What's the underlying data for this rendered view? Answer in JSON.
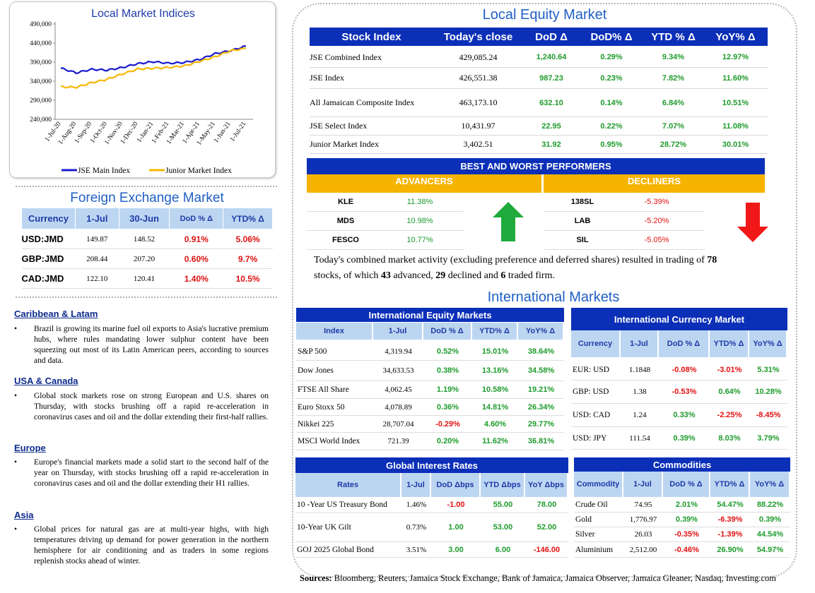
{
  "chart": {
    "title": "Local Market Indices",
    "y_ticks": [
      "490,000",
      "440,000",
      "390,000",
      "340,000",
      "290,000",
      "240,000"
    ],
    "x_ticks": [
      "1-Jul-20",
      "1-Aug-20",
      "1-Sep-20",
      "1-Oct-20",
      "1-Nov-20",
      "1-Dec-20",
      "1-Jan-21",
      "1-Feb-21",
      "1-Mar-21",
      "1-Apr-21",
      "1-May-21",
      "1-Jun-21",
      "1-Jul-21"
    ],
    "legend": [
      "JSE Main Index",
      "Junior Market Index"
    ],
    "colors": {
      "main": "#1a1acc",
      "junior": "#f5b800"
    }
  },
  "chart_data": {
    "type": "line",
    "title": "Local Market Indices",
    "ylim": [
      240000,
      490000
    ],
    "x": [
      "1-Jul-20",
      "1-Aug-20",
      "1-Sep-20",
      "1-Oct-20",
      "1-Nov-20",
      "1-Dec-20",
      "1-Jan-21",
      "1-Feb-21",
      "1-Mar-21",
      "1-Apr-21",
      "1-May-21",
      "1-Jun-21",
      "1-Jul-21"
    ],
    "series": [
      {
        "name": "JSE Main Index",
        "values": [
          374000,
          362000,
          371000,
          369000,
          376000,
          386000,
          391000,
          387000,
          389000,
          397000,
          412000,
          420000,
          432000
        ]
      },
      {
        "name": "Junior Market Index",
        "values": [
          325000,
          324000,
          336000,
          345000,
          359000,
          372000,
          374000,
          376000,
          380000,
          392000,
          404000,
          420000,
          426000
        ]
      }
    ]
  },
  "fx": {
    "title": "Foreign Exchange Market",
    "headers": [
      "Currency",
      "1-Jul",
      "30-Jun",
      "DoD % Δ",
      "YTD% Δ"
    ],
    "rows": [
      {
        "cur": "USD:JMD",
        "a": "149.87",
        "b": "148.52",
        "dod": "0.91%",
        "ytd": "5.06%"
      },
      {
        "cur": "GBP:JMD",
        "a": "208.44",
        "b": "207.20",
        "dod": "0.60%",
        "ytd": "9.7%"
      },
      {
        "cur": "CAD:JMD",
        "a": "122.10",
        "b": "120.41",
        "dod": "1.40%",
        "ytd": "10.5%"
      }
    ]
  },
  "news": [
    {
      "head": "Caribbean & Latam",
      "text": "Brazil is growing its marine fuel oil exports to Asia's lucrative premium hubs, where rules mandating lower sulphur content have been squeezing out most of its Latin American peers, according to sources and data."
    },
    {
      "head": "USA & Canada",
      "text": "Global stock markets rose on strong European and U.S. shares on Thursday, with stocks brushing off a rapid re-acceleration in coronavirus cases and oil and the dollar extending their first-half rallies."
    },
    {
      "head": "Europe",
      "text": "Europe's financial markets made a solid start to the second half of the year on Thursday, with stocks brushing off a rapid re-acceleration in coronavirus cases and oil and the dollar extending their H1 rallies."
    },
    {
      "head": "Asia",
      "text": "Global prices for natural gas are at multi-year highs, with high temperatures driving up demand for power generation in the northern hemisphere for air conditioning and as traders in some regions replenish stocks ahead of winter."
    }
  ],
  "local_equity": {
    "title": "Local Equity Market",
    "headers": [
      "Stock Index",
      "Today's close",
      "DoD  Δ",
      "DoD% Δ",
      "YTD % Δ",
      "YoY% Δ"
    ],
    "rows": [
      {
        "name": "JSE Combined Index",
        "close": "429,085.24",
        "dod": "1,240.64",
        "dodp": "0.29%",
        "ytd": "9.34%",
        "yoy": "12.97%"
      },
      {
        "name": "JSE Index",
        "close": "426,551.38",
        "dod": "987.23",
        "dodp": "0.23%",
        "ytd": "7.82%",
        "yoy": "11.60%"
      },
      {
        "name": "All Jamaican Composite Index",
        "close": "463,173.10",
        "dod": "632.10",
        "dodp": "0.14%",
        "ytd": "6.84%",
        "yoy": "10.51%"
      },
      {
        "name": "JSE Select Index",
        "close": "10,431.97",
        "dod": "22.95",
        "dodp": "0.22%",
        "ytd": "7.07%",
        "yoy": "11.08%"
      },
      {
        "name": "Junior Market Index",
        "close": "3,402.51",
        "dod": "31.92",
        "dodp": "0.95%",
        "ytd": "28.72%",
        "yoy": "30.01%"
      }
    ]
  },
  "performers": {
    "title": "BEST AND WORST PERFORMERS",
    "advancers_label": "ADVANCERS",
    "decliners_label": "DECLINERS",
    "advancers": [
      {
        "sym": "KLE",
        "pct": "11.38%"
      },
      {
        "sym": "MDS",
        "pct": "10.98%"
      },
      {
        "sym": "FESCO",
        "pct": "10.77%"
      }
    ],
    "decliners": [
      {
        "sym": "138SL",
        "pct": "-5.39%"
      },
      {
        "sym": "LAB",
        "pct": "-5.20%"
      },
      {
        "sym": "SIL",
        "pct": "-5.05%"
      }
    ]
  },
  "summary": {
    "p1": "Today's combined market activity (excluding preference and deferred shares) resulted in trading of ",
    "total": "78",
    "p2": "stocks, of which ",
    "adv": "43",
    "p3": " advanced, ",
    "dec": "29",
    "p4": " declined and ",
    "firm": "6",
    "p5": " traded firm."
  },
  "intl": {
    "title": "International Markets",
    "equity": {
      "title": "International Equity Markets",
      "headers": [
        "Index",
        "1-Jul",
        "DoD % Δ",
        "YTD% Δ",
        "YoY% Δ"
      ],
      "rows": [
        {
          "name": "S&P 500",
          "v": "4,319.94",
          "dod": "0.52%",
          "ytd": "15.01%",
          "yoy": "38.64%"
        },
        {
          "name": "Dow Jones",
          "v": "34,633.53",
          "dod": "0.38%",
          "ytd": "13.16%",
          "yoy": "34.58%"
        },
        {
          "name": "FTSE All Share",
          "v": "4,062.45",
          "dod": "1.19%",
          "ytd": "10.58%",
          "yoy": "19.21%"
        },
        {
          "name": "Euro Stoxx 50",
          "v": "4,078.89",
          "dod": "0.36%",
          "ytd": "14.81%",
          "yoy": "26.34%"
        },
        {
          "name": "Nikkei 225",
          "v": "28,707.04",
          "dod": "-0.29%",
          "ytd": "4.60%",
          "yoy": "29.77%"
        },
        {
          "name": "MSCI World Index",
          "v": "721.39",
          "dod": "0.20%",
          "ytd": "11.62%",
          "yoy": "36.81%"
        }
      ]
    },
    "currency": {
      "title": "International Currency Market",
      "headers": [
        "Currency",
        "1-Jul",
        "DoD % Δ",
        "YTD% Δ",
        "YoY% Δ"
      ],
      "rows": [
        {
          "name": "EUR: USD",
          "v": "1.1848",
          "dod": "-0.08%",
          "ytd": "-3.01%",
          "yoy": "5.31%"
        },
        {
          "name": "GBP: USD",
          "v": "1.38",
          "dod": "-0.53%",
          "ytd": "0.64%",
          "yoy": "10.28%"
        },
        {
          "name": "USD: CAD",
          "v": "1.24",
          "dod": "0.33%",
          "ytd": "-2.25%",
          "yoy": "-8.45%"
        },
        {
          "name": "USD: JPY",
          "v": "111.54",
          "dod": "0.39%",
          "ytd": "8.03%",
          "yoy": "3.79%"
        }
      ]
    },
    "rates": {
      "title": "Global Interest Rates",
      "headers": [
        "Rates",
        "1-Jul",
        "DoD Δbps",
        "YTD Δbps",
        "YoY Δbps"
      ],
      "rows": [
        {
          "name": "10 -Year US Treasury Bond",
          "v": "1.46%",
          "dod": "-1.00",
          "ytd": "55.00",
          "yoy": "78.00"
        },
        {
          "name": "10-Year UK Gilt",
          "v": "0.73%",
          "dod": "1.00",
          "ytd": "53.00",
          "yoy": "52.00"
        },
        {
          "name": "GOJ 2025 Global Bond",
          "v": "3.51%",
          "dod": "3.00",
          "ytd": "6.00",
          "yoy": "-146.00"
        }
      ]
    },
    "commodities": {
      "title": "Commodities",
      "headers": [
        "Commodity",
        "1-Jul",
        "DoD % Δ",
        "YTD% Δ",
        "YoY% Δ"
      ],
      "rows": [
        {
          "name": "Crude Oil",
          "v": "74.95",
          "dod": "2.01%",
          "ytd": "54.47%",
          "yoy": "88.22%"
        },
        {
          "name": "Gold",
          "v": "1,776.97",
          "dod": "0.39%",
          "ytd": "-6.39%",
          "yoy": "0.39%"
        },
        {
          "name": "Silver",
          "v": "26.03",
          "dod": "-0.35%",
          "ytd": "-1.39%",
          "yoy": "44.54%"
        },
        {
          "name": "Aluminium",
          "v": "2,512.00",
          "dod": "-0.46%",
          "ytd": "26.90%",
          "yoy": "54.97%"
        }
      ]
    }
  },
  "sources": {
    "label": "Sources:",
    "text": " Bloomberg, Reuters, Jamaica Stock Exchange, Bank of Jamaica, Jamaica Observer, Jamaica Gleaner, Nasdaq, Investing.com"
  }
}
